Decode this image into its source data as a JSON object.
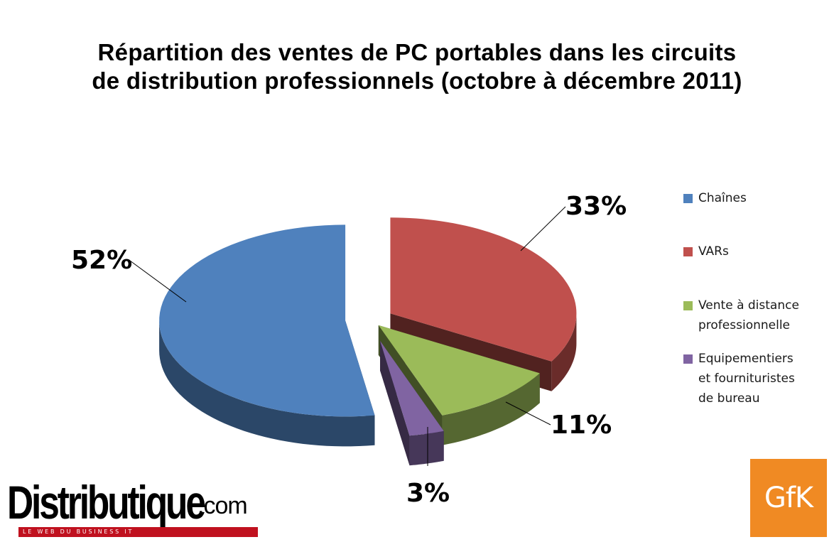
{
  "chart_data": {
    "type": "pie",
    "title_lines": [
      "Répartition des ventes de PC portables dans les circuits",
      "de distribution professionnels (octobre à décembre 2011)"
    ],
    "categories": [
      "Chaînes",
      "VARs",
      "Vente à distance professionnelle",
      "Equipementiers et fournituristes de bureau"
    ],
    "values": [
      52,
      33,
      11,
      3
    ],
    "data_labels": [
      "52%",
      "33%",
      "11%",
      "3%"
    ],
    "colors": [
      "#4f81bd",
      "#c0504d",
      "#9bbb59",
      "#8064a2"
    ],
    "legend_placement": "right",
    "style": "3d-exploded"
  },
  "legend": {
    "items": [
      {
        "label": "Chaînes",
        "color": "#4f81bd"
      },
      {
        "label": "VARs",
        "color": "#c0504d"
      },
      {
        "label": "Vente à distance\nprofessionnelle",
        "color": "#9bbb59"
      },
      {
        "label": "Equipementiers\net fournituristes\nde bureau",
        "color": "#8064a2"
      }
    ]
  },
  "logos": {
    "distributique": {
      "word": "Distributique",
      "suffix": ".com",
      "tagline": "LE WEB DU BUSINESS IT"
    },
    "gfk": {
      "text": "GfK",
      "color": "#f08a23"
    }
  }
}
